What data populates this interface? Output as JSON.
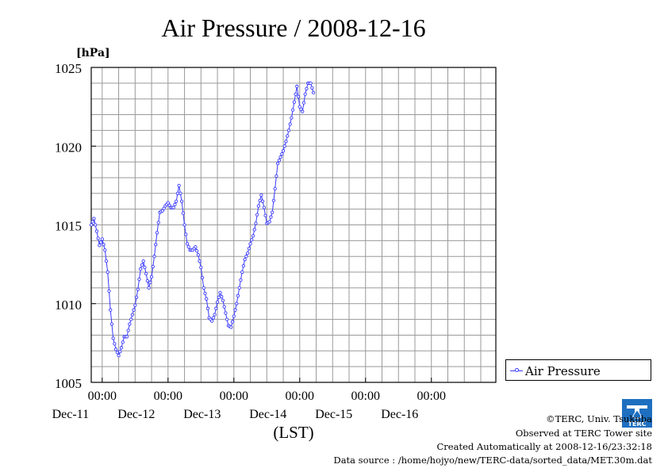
{
  "chart_data": {
    "type": "line",
    "title": "Air Pressure / 2008-12-16",
    "ylabel": "[hPa]",
    "xlabel": "(LST)",
    "ylim": [
      1005,
      1025
    ],
    "yticks": [
      1005,
      1010,
      1015,
      1020,
      1025
    ],
    "xlim": [
      "2008-12-10T20:00",
      "2008-12-16T23:30"
    ],
    "xticks": [
      {
        "time": "2008-12-11T00:00",
        "label": "00:00",
        "date": "Dec-11"
      },
      {
        "time": "2008-12-12T00:00",
        "label": "00:00",
        "date": "Dec-12"
      },
      {
        "time": "2008-12-13T00:00",
        "label": "00:00",
        "date": "Dec-13"
      },
      {
        "time": "2008-12-14T00:00",
        "label": "00:00",
        "date": "Dec-14"
      },
      {
        "time": "2008-12-15T00:00",
        "label": "00:00",
        "date": "Dec-15"
      },
      {
        "time": "2008-12-16T00:00",
        "label": "00:00",
        "date": "Dec-16"
      }
    ],
    "grid": true,
    "legend_position": "right",
    "series": [
      {
        "name": "Air Pressure",
        "color": "#3a3aff",
        "marker": "circle",
        "points": [
          [
            "2008-12-10T20:00",
            1015.0
          ],
          [
            "2008-12-10T21:00",
            1015.4
          ],
          [
            "2008-12-10T22:00",
            1014.6
          ],
          [
            "2008-12-10T23:00",
            1013.7
          ],
          [
            "2008-12-11T00:00",
            1014.1
          ],
          [
            "2008-12-11T01:00",
            1013.4
          ],
          [
            "2008-12-11T02:00",
            1012.0
          ],
          [
            "2008-12-11T03:00",
            1009.6
          ],
          [
            "2008-12-11T04:00",
            1007.8
          ],
          [
            "2008-12-11T05:00",
            1007.1
          ],
          [
            "2008-12-11T06:00",
            1006.7
          ],
          [
            "2008-12-11T07:00",
            1007.2
          ],
          [
            "2008-12-11T08:00",
            1007.9
          ],
          [
            "2008-12-11T09:00",
            1007.9
          ],
          [
            "2008-12-11T10:00",
            1008.7
          ],
          [
            "2008-12-11T11:00",
            1009.3
          ],
          [
            "2008-12-11T12:00",
            1009.9
          ],
          [
            "2008-12-11T13:00",
            1010.9
          ],
          [
            "2008-12-11T14:00",
            1012.2
          ],
          [
            "2008-12-11T15:00",
            1012.7
          ],
          [
            "2008-12-11T16:00",
            1011.9
          ],
          [
            "2008-12-11T17:00",
            1011.0
          ],
          [
            "2008-12-11T18:00",
            1011.7
          ],
          [
            "2008-12-11T19:00",
            1013.0
          ],
          [
            "2008-12-11T20:00",
            1014.5
          ],
          [
            "2008-12-11T21:00",
            1015.8
          ],
          [
            "2008-12-11T22:00",
            1015.9
          ],
          [
            "2008-12-11T23:00",
            1016.2
          ],
          [
            "2008-12-12T00:00",
            1016.4
          ],
          [
            "2008-12-12T01:00",
            1016.1
          ],
          [
            "2008-12-12T02:00",
            1016.1
          ],
          [
            "2008-12-12T03:00",
            1016.5
          ],
          [
            "2008-12-12T04:00",
            1017.5
          ],
          [
            "2008-12-12T05:00",
            1016.5
          ],
          [
            "2008-12-12T06:00",
            1015.0
          ],
          [
            "2008-12-12T07:00",
            1013.8
          ],
          [
            "2008-12-12T08:00",
            1013.4
          ],
          [
            "2008-12-12T09:00",
            1013.4
          ],
          [
            "2008-12-12T10:00",
            1013.6
          ],
          [
            "2008-12-12T11:00",
            1013.1
          ],
          [
            "2008-12-12T12:00",
            1012.3
          ],
          [
            "2008-12-12T13:00",
            1011.0
          ],
          [
            "2008-12-12T14:00",
            1010.3
          ],
          [
            "2008-12-12T15:00",
            1009.1
          ],
          [
            "2008-12-12T16:00",
            1008.9
          ],
          [
            "2008-12-12T17:00",
            1009.3
          ],
          [
            "2008-12-12T18:00",
            1010.1
          ],
          [
            "2008-12-12T19:00",
            1010.7
          ],
          [
            "2008-12-12T20:00",
            1010.2
          ],
          [
            "2008-12-12T21:00",
            1009.4
          ],
          [
            "2008-12-12T22:00",
            1008.6
          ],
          [
            "2008-12-12T23:00",
            1008.5
          ],
          [
            "2008-12-13T00:00",
            1009.2
          ],
          [
            "2008-12-13T01:00",
            1010.0
          ],
          [
            "2008-12-13T02:00",
            1011.0
          ],
          [
            "2008-12-13T03:00",
            1012.0
          ],
          [
            "2008-12-13T04:00",
            1012.8
          ],
          [
            "2008-12-13T05:00",
            1013.2
          ],
          [
            "2008-12-13T06:00",
            1013.8
          ],
          [
            "2008-12-13T07:00",
            1014.3
          ],
          [
            "2008-12-13T08:00",
            1015.1
          ],
          [
            "2008-12-13T09:00",
            1016.2
          ],
          [
            "2008-12-13T10:00",
            1016.9
          ],
          [
            "2008-12-13T11:00",
            1016.1
          ],
          [
            "2008-12-13T12:00",
            1015.1
          ],
          [
            "2008-12-13T13:00",
            1015.2
          ],
          [
            "2008-12-13T14:00",
            1015.8
          ],
          [
            "2008-12-13T15:00",
            1017.3
          ],
          [
            "2008-12-13T16:00",
            1018.9
          ],
          [
            "2008-12-13T17:00",
            1019.3
          ],
          [
            "2008-12-13T18:00",
            1019.7
          ],
          [
            "2008-12-13T19:00",
            1020.3
          ],
          [
            "2008-12-13T20:00",
            1021.0
          ],
          [
            "2008-12-13T21:00",
            1021.8
          ],
          [
            "2008-12-13T22:00",
            1022.8
          ],
          [
            "2008-12-13T23:00",
            1023.8
          ],
          [
            "2008-12-14T00:00",
            1022.5
          ],
          [
            "2008-12-14T01:00",
            1022.2
          ],
          [
            "2008-12-14T02:00",
            1023.3
          ],
          [
            "2008-12-14T03:00",
            1024.0
          ],
          [
            "2008-12-14T04:00",
            1024.0
          ],
          [
            "2008-12-14T05:00",
            1023.4
          ]
        ]
      }
    ]
  },
  "footer": {
    "copyright": "©TERC, Univ. Tsukuba",
    "observed": "Observed at TERC Tower site",
    "created": "Created Automatically at 2008-12-16/23:32:18",
    "source": "Data source : /home/hojyo/new/TERC-data/sorted_data/MET.30m.dat"
  },
  "logo": {
    "text": "TERC"
  }
}
